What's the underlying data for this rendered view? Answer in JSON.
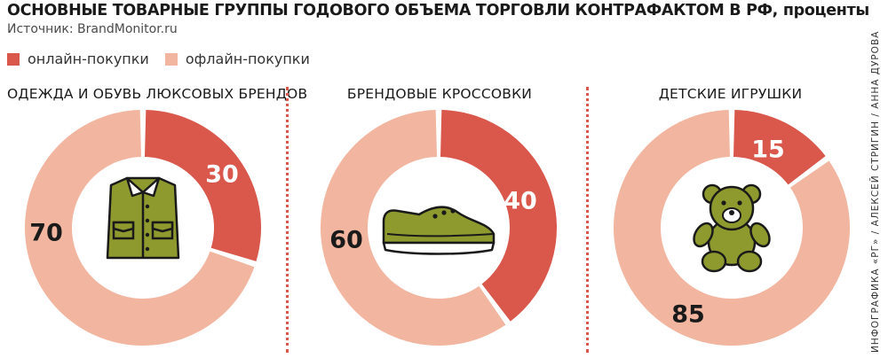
{
  "header": {
    "title": "ОСНОВНЫЕ ТОВАРНЫЕ ГРУППЫ ГОДОВОГО ОБЪЕМА ТОРГОВЛИ КОНТРАФАКТОМ В РФ, проценты",
    "source": "Источник: BrandMonitor.ru"
  },
  "legend": {
    "online": "онлайн-покупки",
    "offline": "офлайн-покупки"
  },
  "colors": {
    "online": "#d9574b",
    "offline": "#f2b6a0",
    "icon": "#8f9a2e",
    "divider": "#d9574b"
  },
  "credit": "ИНФОГРАФИКА «РГ» / АЛЕКСЕЙ СТРИГИН / АННА ДУРОВА",
  "chart_data": [
    {
      "type": "pie",
      "title": "ОДЕЖДА И ОБУВЬ ЛЮКСОВЫХ БРЕНДОВ",
      "icon": "shirt-icon",
      "series": [
        {
          "name": "онлайн-покупки",
          "value": 30,
          "label": "30"
        },
        {
          "name": "офлайн-покупки",
          "value": 70,
          "label": "70"
        }
      ]
    },
    {
      "type": "pie",
      "title": "БРЕНДОВЫЕ КРОССОВКИ",
      "icon": "sneaker-icon",
      "series": [
        {
          "name": "онлайн-покупки",
          "value": 40,
          "label": "40"
        },
        {
          "name": "офлайн-покупки",
          "value": 60,
          "label": "60"
        }
      ]
    },
    {
      "type": "pie",
      "title": "ДЕТСКИЕ ИГРУШКИ",
      "icon": "teddy-bear-icon",
      "series": [
        {
          "name": "онлайн-покупки",
          "value": 15,
          "label": "15"
        },
        {
          "name": "офлайн-покупки",
          "value": 85,
          "label": "85"
        }
      ]
    }
  ]
}
